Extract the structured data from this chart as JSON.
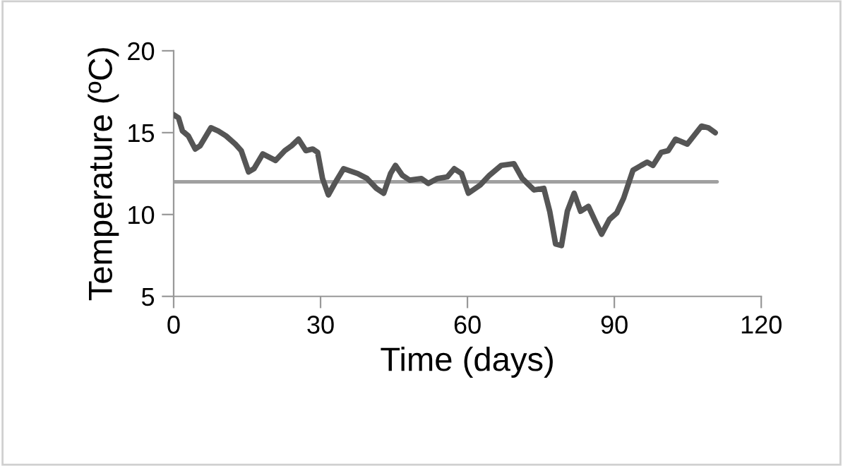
{
  "chart_data": {
    "type": "line",
    "xlabel": "Time (days)",
    "ylabel": "Temperature (ºC)",
    "x": [
      0,
      1,
      1.8,
      3,
      4.4,
      5.4,
      7.6,
      9.1,
      10.7,
      12.6,
      13.8,
      15.3,
      16.4,
      18.2,
      20.8,
      22.7,
      24.1,
      25.5,
      27,
      28.4,
      29.4,
      30.4,
      31.6,
      32.9,
      34.7,
      37.6,
      39.5,
      41.4,
      42.9,
      44.3,
      45.3,
      46.7,
      48.2,
      50.6,
      52,
      53.9,
      55.9,
      57.3,
      58.8,
      60.2,
      62.6,
      64.5,
      66.9,
      69.5,
      71.2,
      73.6,
      75.6,
      76.8,
      78,
      79.2,
      80.4,
      81.8,
      83.1,
      84.7,
      86.1,
      87.4,
      89,
      90.5,
      91.9,
      93.8,
      95.5,
      96.7,
      97.9,
      99.6,
      101,
      102.5,
      104.9,
      107.8,
      109.2,
      110.6
    ],
    "series": [
      {
        "color": "#555555",
        "values": [
          16.1,
          15.9,
          15.1,
          14.8,
          14.0,
          14.2,
          15.3,
          15.1,
          14.8,
          14.3,
          13.9,
          12.6,
          12.8,
          13.7,
          13.3,
          13.9,
          14.2,
          14.6,
          13.9,
          14.0,
          13.8,
          12.2,
          11.2,
          11.9,
          12.8,
          12.5,
          12.2,
          11.6,
          11.3,
          12.5,
          13.0,
          12.4,
          12.1,
          12.2,
          11.9,
          12.2,
          12.3,
          12.8,
          12.5,
          11.3,
          11.8,
          12.4,
          13.0,
          13.1,
          12.2,
          11.5,
          11.6,
          10.2,
          8.2,
          8.1,
          10.2,
          11.3,
          10.2,
          10.5,
          9.6,
          8.8,
          9.7,
          10.1,
          11.0,
          12.7,
          13.0,
          13.2,
          13.0,
          13.8,
          13.9,
          14.6,
          14.3,
          15.4,
          15.3,
          15.0
        ]
      },
      {
        "type": "line",
        "color": "#a0a0a0",
        "x": [
          0,
          111
        ],
        "values": [
          12,
          12
        ]
      }
    ],
    "xlim": [
      0,
      120
    ],
    "ylim": [
      5,
      20
    ],
    "xticks": [
      0,
      30,
      60,
      90,
      120
    ],
    "yticks": [
      5,
      10,
      15,
      20
    ],
    "grid": false,
    "legend": false
  }
}
